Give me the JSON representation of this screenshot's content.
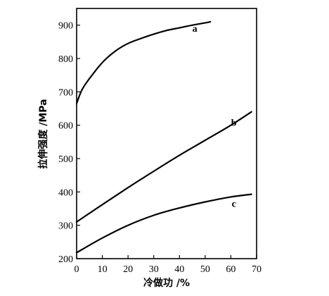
{
  "chart_data": {
    "type": "line",
    "title": "",
    "xlabel": "冷做功 /%",
    "ylabel": "拉伸强度 /MPa",
    "xlim": [
      0,
      70
    ],
    "ylim": [
      200,
      950
    ],
    "x_ticks": [
      0,
      10,
      20,
      30,
      40,
      50,
      60,
      70
    ],
    "y_ticks": [
      200,
      300,
      400,
      500,
      600,
      700,
      800,
      900
    ],
    "grid": false,
    "legend": "none",
    "series": [
      {
        "name": "a",
        "x": [
          0,
          2,
          5,
          10,
          15,
          20,
          25,
          30,
          35,
          40,
          45,
          50,
          52
        ],
        "y": [
          665,
          705,
          740,
          788,
          822,
          845,
          860,
          873,
          884,
          892,
          900,
          907,
          910
        ]
      },
      {
        "name": "b",
        "x": [
          0,
          10,
          20,
          30,
          40,
          50,
          60,
          68
        ],
        "y": [
          310,
          362,
          413,
          462,
          510,
          555,
          600,
          640
        ]
      },
      {
        "name": "c",
        "x": [
          0,
          10,
          20,
          30,
          40,
          50,
          60,
          68
        ],
        "y": [
          218,
          262,
          300,
          330,
          352,
          370,
          385,
          393
        ]
      }
    ]
  }
}
